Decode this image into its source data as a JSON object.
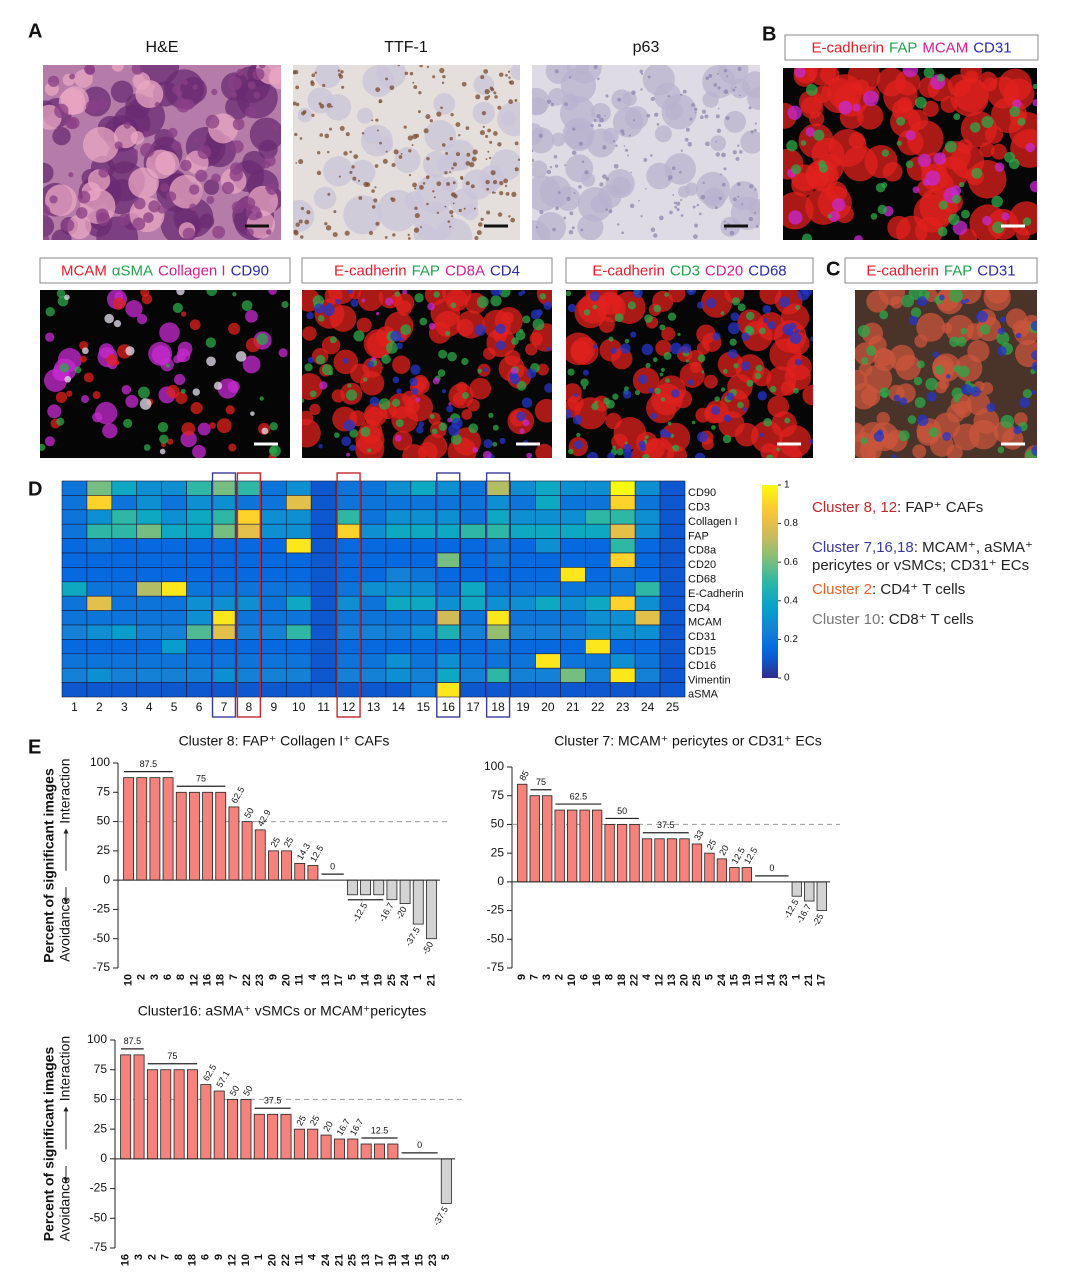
{
  "panel_labels": [
    "A",
    "B",
    "C",
    "D",
    "E"
  ],
  "he_panels": [
    {
      "title": "H&E"
    },
    {
      "title": "TTF-1"
    },
    {
      "title": "p63"
    }
  ],
  "stain_panels": [
    {
      "stains": [
        {
          "text": "E-cadherin",
          "color": "#e0202a"
        },
        {
          "text": "FAP",
          "color": "#1fa54a"
        },
        {
          "text": "MCAM",
          "color": "#d4208f"
        },
        {
          "text": "CD31",
          "color": "#2a2aa8"
        }
      ]
    },
    {
      "stains": [
        {
          "text": "MCAM",
          "color": "#e0202a"
        },
        {
          "text": "αSMA",
          "color": "#1fa54a"
        },
        {
          "text": "Collagen I",
          "color": "#d4208f"
        },
        {
          "text": "CD90",
          "color": "#2a2aa8"
        }
      ]
    },
    {
      "stains": [
        {
          "text": "E-cadherin",
          "color": "#e0202a"
        },
        {
          "text": "FAP",
          "color": "#1fa54a"
        },
        {
          "text": "CD8A",
          "color": "#d4208f"
        },
        {
          "text": "CD4",
          "color": "#2a2aa8"
        }
      ]
    },
    {
      "stains": [
        {
          "text": "E-cadherin",
          "color": "#e0202a"
        },
        {
          "text": "CD3",
          "color": "#1fa54a"
        },
        {
          "text": "CD20",
          "color": "#d4208f"
        },
        {
          "text": "CD68",
          "color": "#2a2aa8"
        }
      ]
    },
    {
      "stains": [
        {
          "text": "E-cadherin",
          "color": "#e0202a"
        },
        {
          "text": "FAP",
          "color": "#1fa54a"
        },
        {
          "text": "CD31",
          "color": "#2a2aa8"
        }
      ]
    }
  ],
  "chart_data": [
    {
      "type": "heatmap",
      "categories": [
        "1",
        "2",
        "3",
        "4",
        "5",
        "6",
        "7",
        "8",
        "9",
        "10",
        "11",
        "12",
        "13",
        "14",
        "15",
        "16",
        "17",
        "18",
        "19",
        "20",
        "21",
        "22",
        "23",
        "24",
        "25"
      ],
      "rows": [
        "CD90",
        "CD3",
        "Collagen I",
        "FAP",
        "CD8a",
        "CD20",
        "CD68",
        "E-Cadherin",
        "CD4",
        "MCAM",
        "CD31",
        "CD15",
        "CD16",
        "Vimentin",
        "aSMA"
      ],
      "values": [
        [
          0.2,
          0.6,
          0.4,
          0.3,
          0.3,
          0.5,
          0.6,
          0.5,
          0.2,
          0.3,
          0.1,
          0.2,
          0.2,
          0.3,
          0.4,
          0.3,
          0.2,
          0.7,
          0.3,
          0.4,
          0.3,
          0.3,
          1.0,
          0.3,
          0.1
        ],
        [
          0.2,
          0.9,
          0.2,
          0.3,
          0.2,
          0.3,
          0.3,
          0.2,
          0.2,
          0.8,
          0.1,
          0.2,
          0.2,
          0.2,
          0.2,
          0.2,
          0.2,
          0.3,
          0.2,
          0.4,
          0.2,
          0.2,
          0.9,
          0.2,
          0.1
        ],
        [
          0.2,
          0.3,
          0.5,
          0.4,
          0.3,
          0.4,
          0.5,
          0.9,
          0.3,
          0.3,
          0.1,
          0.5,
          0.2,
          0.3,
          0.3,
          0.3,
          0.2,
          0.4,
          0.3,
          0.3,
          0.3,
          0.5,
          0.5,
          0.3,
          0.1
        ],
        [
          0.2,
          0.5,
          0.5,
          0.6,
          0.4,
          0.4,
          0.6,
          0.8,
          0.3,
          0.3,
          0.1,
          0.9,
          0.3,
          0.4,
          0.4,
          0.4,
          0.5,
          0.5,
          0.4,
          0.4,
          0.4,
          0.4,
          0.8,
          0.3,
          0.1
        ],
        [
          0.15,
          0.2,
          0.15,
          0.15,
          0.15,
          0.15,
          0.15,
          0.15,
          0.15,
          0.95,
          0.1,
          0.15,
          0.15,
          0.15,
          0.15,
          0.15,
          0.15,
          0.2,
          0.15,
          0.3,
          0.15,
          0.15,
          0.5,
          0.15,
          0.1
        ],
        [
          0.15,
          0.15,
          0.15,
          0.15,
          0.15,
          0.15,
          0.15,
          0.15,
          0.15,
          0.15,
          0.1,
          0.15,
          0.15,
          0.15,
          0.15,
          0.6,
          0.15,
          0.2,
          0.15,
          0.15,
          0.15,
          0.15,
          0.9,
          0.15,
          0.1
        ],
        [
          0.15,
          0.15,
          0.15,
          0.15,
          0.15,
          0.15,
          0.15,
          0.15,
          0.15,
          0.15,
          0.1,
          0.15,
          0.15,
          0.25,
          0.2,
          0.15,
          0.15,
          0.15,
          0.15,
          0.15,
          0.95,
          0.15,
          0.2,
          0.15,
          0.1
        ],
        [
          0.4,
          0.2,
          0.2,
          0.7,
          0.95,
          0.2,
          0.2,
          0.2,
          0.2,
          0.2,
          0.1,
          0.2,
          0.3,
          0.3,
          0.3,
          0.2,
          0.4,
          0.2,
          0.2,
          0.2,
          0.2,
          0.2,
          0.2,
          0.5,
          0.1
        ],
        [
          0.2,
          0.8,
          0.2,
          0.2,
          0.2,
          0.3,
          0.3,
          0.3,
          0.2,
          0.4,
          0.1,
          0.3,
          0.2,
          0.4,
          0.4,
          0.3,
          0.4,
          0.3,
          0.3,
          0.4,
          0.3,
          0.4,
          0.9,
          0.3,
          0.1
        ],
        [
          0.2,
          0.2,
          0.2,
          0.2,
          0.2,
          0.3,
          0.95,
          0.2,
          0.2,
          0.2,
          0.1,
          0.2,
          0.2,
          0.2,
          0.2,
          0.75,
          0.2,
          0.95,
          0.2,
          0.2,
          0.2,
          0.3,
          0.3,
          0.8,
          0.1
        ],
        [
          0.25,
          0.3,
          0.35,
          0.25,
          0.25,
          0.55,
          0.8,
          0.25,
          0.25,
          0.5,
          0.1,
          0.25,
          0.25,
          0.25,
          0.3,
          0.45,
          0.25,
          0.65,
          0.25,
          0.25,
          0.25,
          0.3,
          0.3,
          0.3,
          0.1
        ],
        [
          0.15,
          0.15,
          0.15,
          0.15,
          0.35,
          0.15,
          0.15,
          0.15,
          0.15,
          0.15,
          0.1,
          0.15,
          0.15,
          0.15,
          0.15,
          0.15,
          0.15,
          0.2,
          0.15,
          0.15,
          0.15,
          0.95,
          0.15,
          0.15,
          0.1
        ],
        [
          0.2,
          0.2,
          0.2,
          0.2,
          0.2,
          0.2,
          0.2,
          0.2,
          0.2,
          0.2,
          0.1,
          0.2,
          0.2,
          0.3,
          0.2,
          0.3,
          0.2,
          0.2,
          0.2,
          0.95,
          0.2,
          0.2,
          0.3,
          0.2,
          0.1
        ],
        [
          0.25,
          0.3,
          0.25,
          0.25,
          0.25,
          0.25,
          0.3,
          0.25,
          0.25,
          0.25,
          0.1,
          0.25,
          0.25,
          0.3,
          0.25,
          0.4,
          0.25,
          0.5,
          0.25,
          0.25,
          0.6,
          0.25,
          0.95,
          0.25,
          0.1
        ],
        [
          0.1,
          0.1,
          0.1,
          0.1,
          0.1,
          0.1,
          0.1,
          0.1,
          0.1,
          0.1,
          0.1,
          0.1,
          0.1,
          0.1,
          0.2,
          0.95,
          0.1,
          0.1,
          0.1,
          0.1,
          0.1,
          0.1,
          0.1,
          0.1,
          0.1
        ]
      ],
      "clim": [
        0,
        1
      ],
      "colorbar_ticks": [
        0,
        0.2,
        0.4,
        0.6,
        0.8,
        1
      ],
      "colormap": "parula",
      "label_colors": {
        "2": "#e8622a",
        "10": "#777777"
      },
      "highlight_columns": [
        {
          "category": "7",
          "color": "#3a3a9a"
        },
        {
          "category": "8",
          "color": "#c0282d"
        },
        {
          "category": "12",
          "color": "#c0282d"
        },
        {
          "category": "16",
          "color": "#3a3a9a"
        },
        {
          "category": "18",
          "color": "#3a3a9a"
        }
      ],
      "notes": [
        {
          "spans": [
            {
              "text": "Cluster 8, 12",
              "color": "#c0282d"
            },
            {
              "text": ": FAP⁺ CAFs",
              "color": "#222222"
            }
          ]
        },
        {
          "spans": [
            {
              "text": "Cluster 7,16,18",
              "color": "#3a3a9a"
            },
            {
              "text": ": MCAM⁺, aSMA⁺",
              "color": "#222222"
            }
          ]
        },
        {
          "spans": [
            {
              "text": "pericytes or vSMCs; CD31⁺ ECs",
              "color": "#222222"
            }
          ]
        },
        {
          "spans": [
            {
              "text": "Cluster 2",
              "color": "#e8622a"
            },
            {
              "text": ": CD4⁺ T cells",
              "color": "#222222"
            }
          ]
        },
        {
          "spans": [
            {
              "text": "Cluster 10",
              "color": "#777777"
            },
            {
              "text": ": CD8⁺ T cells",
              "color": "#222222"
            }
          ]
        }
      ]
    },
    {
      "type": "bar",
      "title": "Cluster 8: FAP⁺ Collagen I⁺ CAFs",
      "ylabel": "Percent of significant images",
      "ylabel_positive": "Interaction",
      "ylabel_negative": "Avoidance",
      "categories": [
        "10",
        "2",
        "3",
        "6",
        "8",
        "12",
        "16",
        "18",
        "7",
        "22",
        "23",
        "9",
        "20",
        "11",
        "4",
        "13",
        "17",
        "5",
        "14",
        "19",
        "25",
        "24",
        "1",
        "21"
      ],
      "values": [
        87.5,
        87.5,
        87.5,
        87.5,
        75,
        75,
        75,
        75,
        62.5,
        50,
        42.9,
        25,
        25,
        14.3,
        12.5,
        0,
        0,
        -12.5,
        -12.5,
        -12.5,
        -16.7,
        -20,
        -37.5,
        -50
      ],
      "groups": [
        {
          "value": 87.5,
          "categories": [
            "10",
            "2",
            "3",
            "6"
          ]
        },
        {
          "value": 75,
          "categories": [
            "8",
            "12",
            "16",
            "18"
          ]
        },
        {
          "value": 62.5,
          "categories": [
            "7"
          ]
        },
        {
          "value": 50,
          "categories": [
            "22"
          ]
        },
        {
          "value": 42.9,
          "categories": [
            "23"
          ]
        },
        {
          "value": 25,
          "categories": [
            "9"
          ]
        },
        {
          "value": 25,
          "categories": [
            "20"
          ]
        },
        {
          "value": 14.3,
          "categories": [
            "11"
          ]
        },
        {
          "value": 12.5,
          "categories": [
            "4"
          ]
        },
        {
          "value": 0,
          "categories": [
            "13",
            "17"
          ]
        },
        {
          "value": -12.5,
          "categories": [
            "5",
            "14",
            "19"
          ]
        },
        {
          "value": -16.7,
          "categories": [
            "25"
          ]
        },
        {
          "value": -20,
          "categories": [
            "24"
          ]
        },
        {
          "value": -37.5,
          "categories": [
            "1"
          ]
        },
        {
          "value": -50,
          "categories": [
            "21"
          ]
        }
      ],
      "label_colors": {
        "2": "#e8622a",
        "8": "#c0282d",
        "12": "#c0282d",
        "16": "#3a3a9a",
        "18": "#3a3a9a",
        "7": "#3a3a9a"
      },
      "color": "#f4837d",
      "negative_color": "#d3d3d3",
      "ylim": [
        -75,
        100
      ],
      "yticks": [
        -75,
        -50,
        -25,
        0,
        25,
        50,
        75,
        100
      ],
      "refline": 50
    },
    {
      "type": "bar",
      "title": "Cluster 7: MCAM⁺ pericytes or CD31⁺ ECs",
      "categories": [
        "9",
        "7",
        "3",
        "2",
        "10",
        "6",
        "16",
        "8",
        "18",
        "22",
        "4",
        "12",
        "13",
        "20",
        "25",
        "5",
        "24",
        "15",
        "19",
        "11",
        "14",
        "23",
        "1",
        "21",
        "17"
      ],
      "values": [
        85,
        75,
        75,
        62.5,
        62.5,
        62.5,
        62.5,
        50,
        50,
        50,
        37.5,
        37.5,
        37.5,
        37.5,
        33,
        25,
        20,
        12.5,
        12.5,
        0,
        0,
        0,
        -12.5,
        -16.7,
        -25
      ],
      "groups": [
        {
          "value": 85,
          "categories": [
            "9"
          ]
        },
        {
          "value": 75,
          "categories": [
            "7",
            "3"
          ]
        },
        {
          "value": 62.5,
          "categories": [
            "2",
            "10",
            "6",
            "16"
          ]
        },
        {
          "value": 50,
          "categories": [
            "8",
            "18",
            "22"
          ]
        },
        {
          "value": 37.5,
          "categories": [
            "4",
            "12",
            "13",
            "20"
          ]
        },
        {
          "value": 33,
          "categories": [
            "25"
          ]
        },
        {
          "value": 25,
          "categories": [
            "5"
          ]
        },
        {
          "value": 20,
          "categories": [
            "24"
          ]
        },
        {
          "value": 12.5,
          "categories": [
            "15"
          ]
        },
        {
          "value": 12.5,
          "categories": [
            "19"
          ]
        },
        {
          "value": 0,
          "categories": [
            "11",
            "14",
            "23"
          ]
        },
        {
          "value": -12.5,
          "categories": [
            "1"
          ]
        },
        {
          "value": -16.7,
          "categories": [
            "21"
          ]
        },
        {
          "value": -25,
          "categories": [
            "17"
          ]
        }
      ],
      "label_colors": {
        "7": "#3a3a9a",
        "2": "#e8622a",
        "16": "#3a3a9a",
        "8": "#c0282d",
        "18": "#3a3a9a",
        "12": "#c0282d"
      },
      "color": "#f4837d",
      "negative_color": "#d3d3d3",
      "ylim": [
        -75,
        100
      ],
      "yticks": [
        -75,
        -50,
        -25,
        0,
        25,
        50,
        75,
        100
      ],
      "refline": 50
    },
    {
      "type": "bar",
      "title": "Cluster16: aSMA⁺ vSMCs or MCAM⁺pericytes",
      "ylabel": "Percent of significant images",
      "ylabel_positive": "Interaction",
      "ylabel_negative": "Avoidance",
      "categories": [
        "16",
        "3",
        "2",
        "7",
        "8",
        "18",
        "6",
        "9",
        "12",
        "10",
        "1",
        "20",
        "22",
        "11",
        "4",
        "24",
        "21",
        "25",
        "13",
        "17",
        "19",
        "14",
        "15",
        "23",
        "5"
      ],
      "values": [
        87.5,
        87.5,
        75,
        75,
        75,
        75,
        62.5,
        57.1,
        50,
        50,
        37.5,
        37.5,
        37.5,
        25,
        25,
        20,
        16.7,
        16.7,
        12.5,
        12.5,
        12.5,
        0,
        0,
        0,
        -37.5
      ],
      "groups": [
        {
          "value": 87.5,
          "categories": [
            "16",
            "3"
          ]
        },
        {
          "value": 75,
          "categories": [
            "2",
            "7",
            "8",
            "18"
          ]
        },
        {
          "value": 62.5,
          "categories": [
            "6"
          ]
        },
        {
          "value": 57.1,
          "categories": [
            "9"
          ]
        },
        {
          "value": 50,
          "categories": [
            "12"
          ]
        },
        {
          "value": 50,
          "categories": [
            "10"
          ]
        },
        {
          "value": 37.5,
          "categories": [
            "1",
            "20",
            "22"
          ]
        },
        {
          "value": 25,
          "categories": [
            "11"
          ]
        },
        {
          "value": 25,
          "categories": [
            "4"
          ]
        },
        {
          "value": 20,
          "categories": [
            "24"
          ]
        },
        {
          "value": 16.7,
          "categories": [
            "21"
          ]
        },
        {
          "value": 16.7,
          "categories": [
            "25"
          ]
        },
        {
          "value": 12.5,
          "categories": [
            "13",
            "17",
            "19"
          ]
        },
        {
          "value": 0,
          "categories": [
            "14",
            "15",
            "23"
          ]
        },
        {
          "value": -37.5,
          "categories": [
            "5"
          ]
        }
      ],
      "label_colors": {
        "16": "#3a3a9a",
        "2": "#e8622a",
        "7": "#3a3a9a",
        "8": "#c0282d",
        "18": "#3a3a9a",
        "12": "#c0282d"
      },
      "color": "#f4837d",
      "negative_color": "#d3d3d3",
      "ylim": [
        -75,
        100
      ],
      "yticks": [
        -75,
        -50,
        -25,
        0,
        25,
        50,
        75,
        100
      ],
      "refline": 50
    }
  ]
}
